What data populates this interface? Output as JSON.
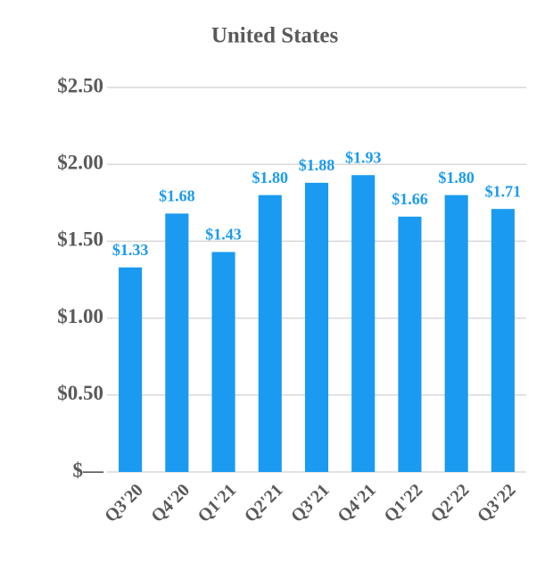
{
  "chart_data": {
    "type": "bar",
    "title": "United States",
    "categories": [
      "Q3'20",
      "Q4'20",
      "Q1'21",
      "Q2'21",
      "Q3'21",
      "Q4'21",
      "Q1'22",
      "Q2'22",
      "Q3'22"
    ],
    "values": [
      1.33,
      1.68,
      1.43,
      1.8,
      1.88,
      1.93,
      1.66,
      1.8,
      1.71
    ],
    "value_labels": [
      "$1.33",
      "$1.68",
      "$1.43",
      "$1.80",
      "$1.88",
      "$1.93",
      "$1.66",
      "$1.80",
      "$1.71"
    ],
    "color": "#1a9af0",
    "ylim": [
      0,
      2.5
    ],
    "yticks": [
      {
        "value": 0,
        "label": "$—"
      },
      {
        "value": 0.5,
        "label": "$0.50"
      },
      {
        "value": 1,
        "label": "$1.00"
      },
      {
        "value": 1.5,
        "label": "$1.50"
      },
      {
        "value": 2,
        "label": "$2.00"
      },
      {
        "value": 2.5,
        "label": "$2.50"
      }
    ],
    "grid": true
  }
}
